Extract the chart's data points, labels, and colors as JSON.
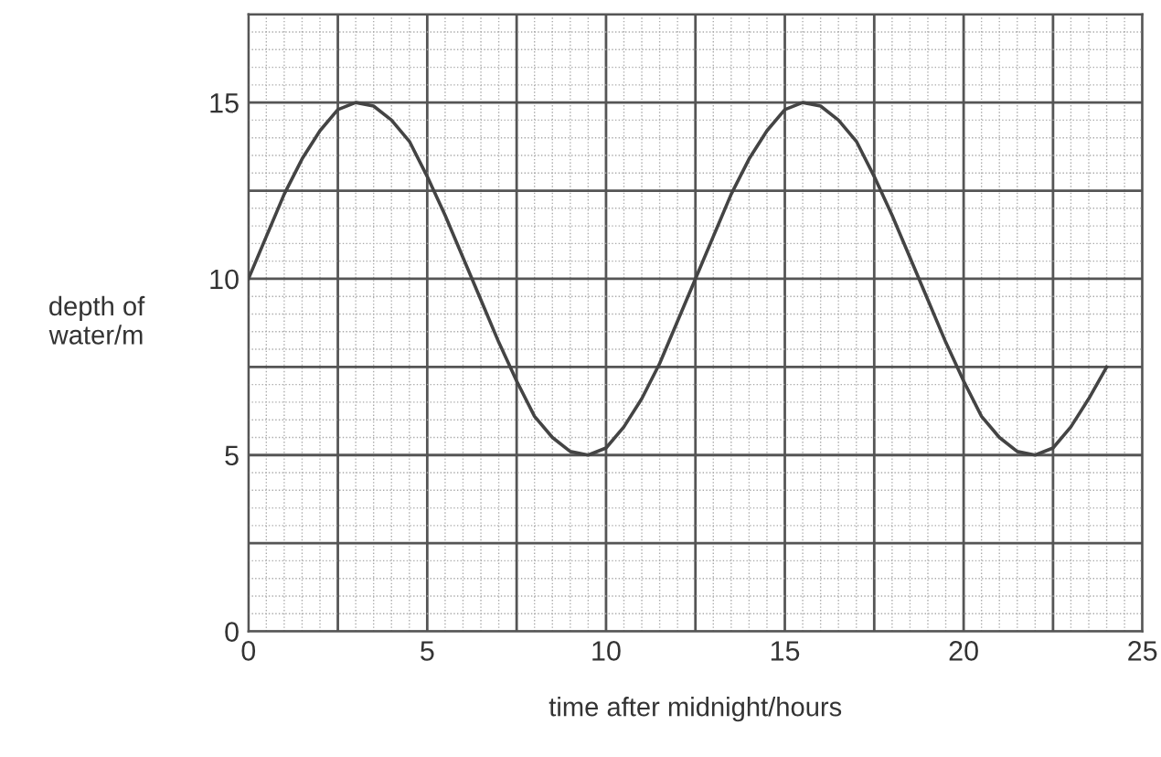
{
  "chart_data": {
    "type": "line",
    "xlabel": "time after midnight/hours",
    "ylabel": "depth of\nwater/m",
    "x": [
      0,
      0.5,
      1,
      1.5,
      2,
      2.5,
      3,
      3.5,
      4,
      4.5,
      5,
      5.5,
      6,
      6.5,
      7,
      7.5,
      8,
      8.5,
      9,
      9.5,
      10,
      10.5,
      11,
      11.5,
      12,
      12.5,
      13,
      13.5,
      14,
      14.5,
      15,
      15.5,
      16,
      16.5,
      17,
      17.5,
      18,
      18.5,
      19,
      19.5,
      20,
      20.5,
      21,
      21.5,
      22,
      22.5,
      23,
      23.5,
      24
    ],
    "series": [
      {
        "color": "#444444",
        "values": [
          10.0,
          11.2,
          12.4,
          13.4,
          14.2,
          14.8,
          15.0,
          14.9,
          14.5,
          13.9,
          12.9,
          11.8,
          10.6,
          9.4,
          8.2,
          7.1,
          6.1,
          5.5,
          5.1,
          5.0,
          5.2,
          5.8,
          6.6,
          7.6,
          8.8,
          10.0,
          11.2,
          12.4,
          13.4,
          14.2,
          14.8,
          15.0,
          14.9,
          14.5,
          13.9,
          12.9,
          11.8,
          10.6,
          9.4,
          8.2,
          7.1,
          6.1,
          5.5,
          5.1,
          5.0,
          5.2,
          5.8,
          6.6,
          7.5
        ]
      }
    ],
    "xlim": [
      0,
      25
    ],
    "ylim": [
      0,
      17.5
    ],
    "xticks": [
      0,
      {
        "value": 2.5,
        "label": null
      },
      5,
      {
        "value": 7.5,
        "label": null
      },
      10,
      {
        "value": 12.5,
        "label": null
      },
      15,
      {
        "value": 17.5,
        "label": null
      },
      20,
      {
        "value": 22.5,
        "label": null
      },
      25
    ],
    "yticks": [
      0,
      {
        "value": 2.5,
        "label": null
      },
      5,
      {
        "value": 7.5,
        "label": null
      },
      10,
      {
        "value": 12.5,
        "label": null
      },
      15,
      {
        "value": 17.5,
        "label": null
      }
    ],
    "grid": true,
    "marker": "none",
    "line_style": "solid"
  }
}
